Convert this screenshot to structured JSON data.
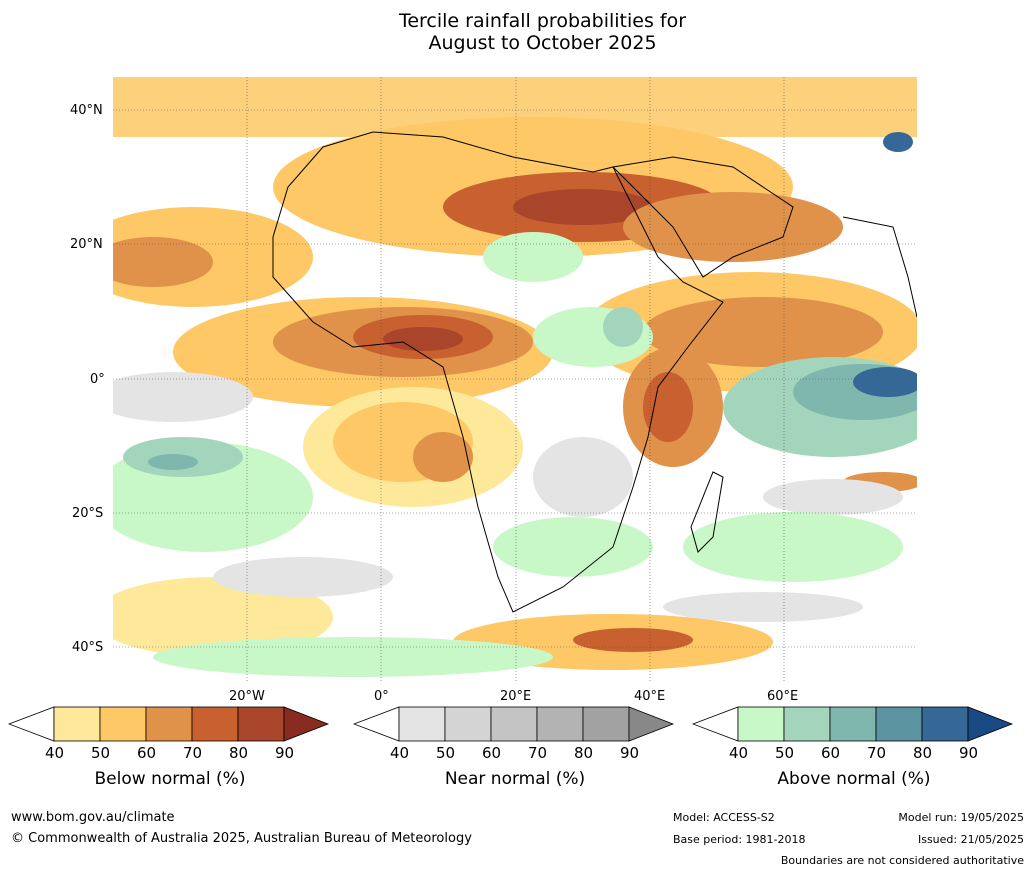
{
  "title_line1": "Tercile rainfall probabilities for",
  "title_line2": "August to October 2025",
  "lat_labels": [
    "40°N",
    "20°N",
    "0°",
    "20°S",
    "40°S"
  ],
  "lon_labels": [
    "20°W",
    "0°",
    "20°E",
    "40°E",
    "60°E"
  ],
  "colorbars": [
    {
      "title": "Below normal (%)",
      "ticks": [
        "40",
        "50",
        "60",
        "70",
        "80",
        "90"
      ],
      "colors": [
        "#ffffff",
        "#fee99b",
        "#fdc865",
        "#e0924a",
        "#c8602f",
        "#a9452a",
        "#8a2b1f"
      ]
    },
    {
      "title": "Near normal (%)",
      "ticks": [
        "40",
        "50",
        "60",
        "70",
        "80",
        "90"
      ],
      "colors": [
        "#ffffff",
        "#e4e4e4",
        "#d4d4d4",
        "#c4c4c4",
        "#b3b3b3",
        "#a2a2a2",
        "#888888"
      ]
    },
    {
      "title": "Above normal (%)",
      "ticks": [
        "40",
        "50",
        "60",
        "70",
        "80",
        "90"
      ],
      "colors": [
        "#ffffff",
        "#c9f8c8",
        "#a3d5bc",
        "#7fb6ae",
        "#5c93a0",
        "#356896",
        "#1a4a84"
      ]
    }
  ],
  "footer": {
    "url": "www.bom.gov.au/climate",
    "copyright": "© Commonwealth of Australia 2025, Australian Bureau of Meteorology",
    "model": "Model: ACCESS-S2",
    "base_period": "Base period: 1981-2018",
    "model_run": "Model run: 19/05/2025",
    "issued": "Issued: 21/05/2025",
    "disclaimer": "Boundaries are not considered authoritative"
  }
}
